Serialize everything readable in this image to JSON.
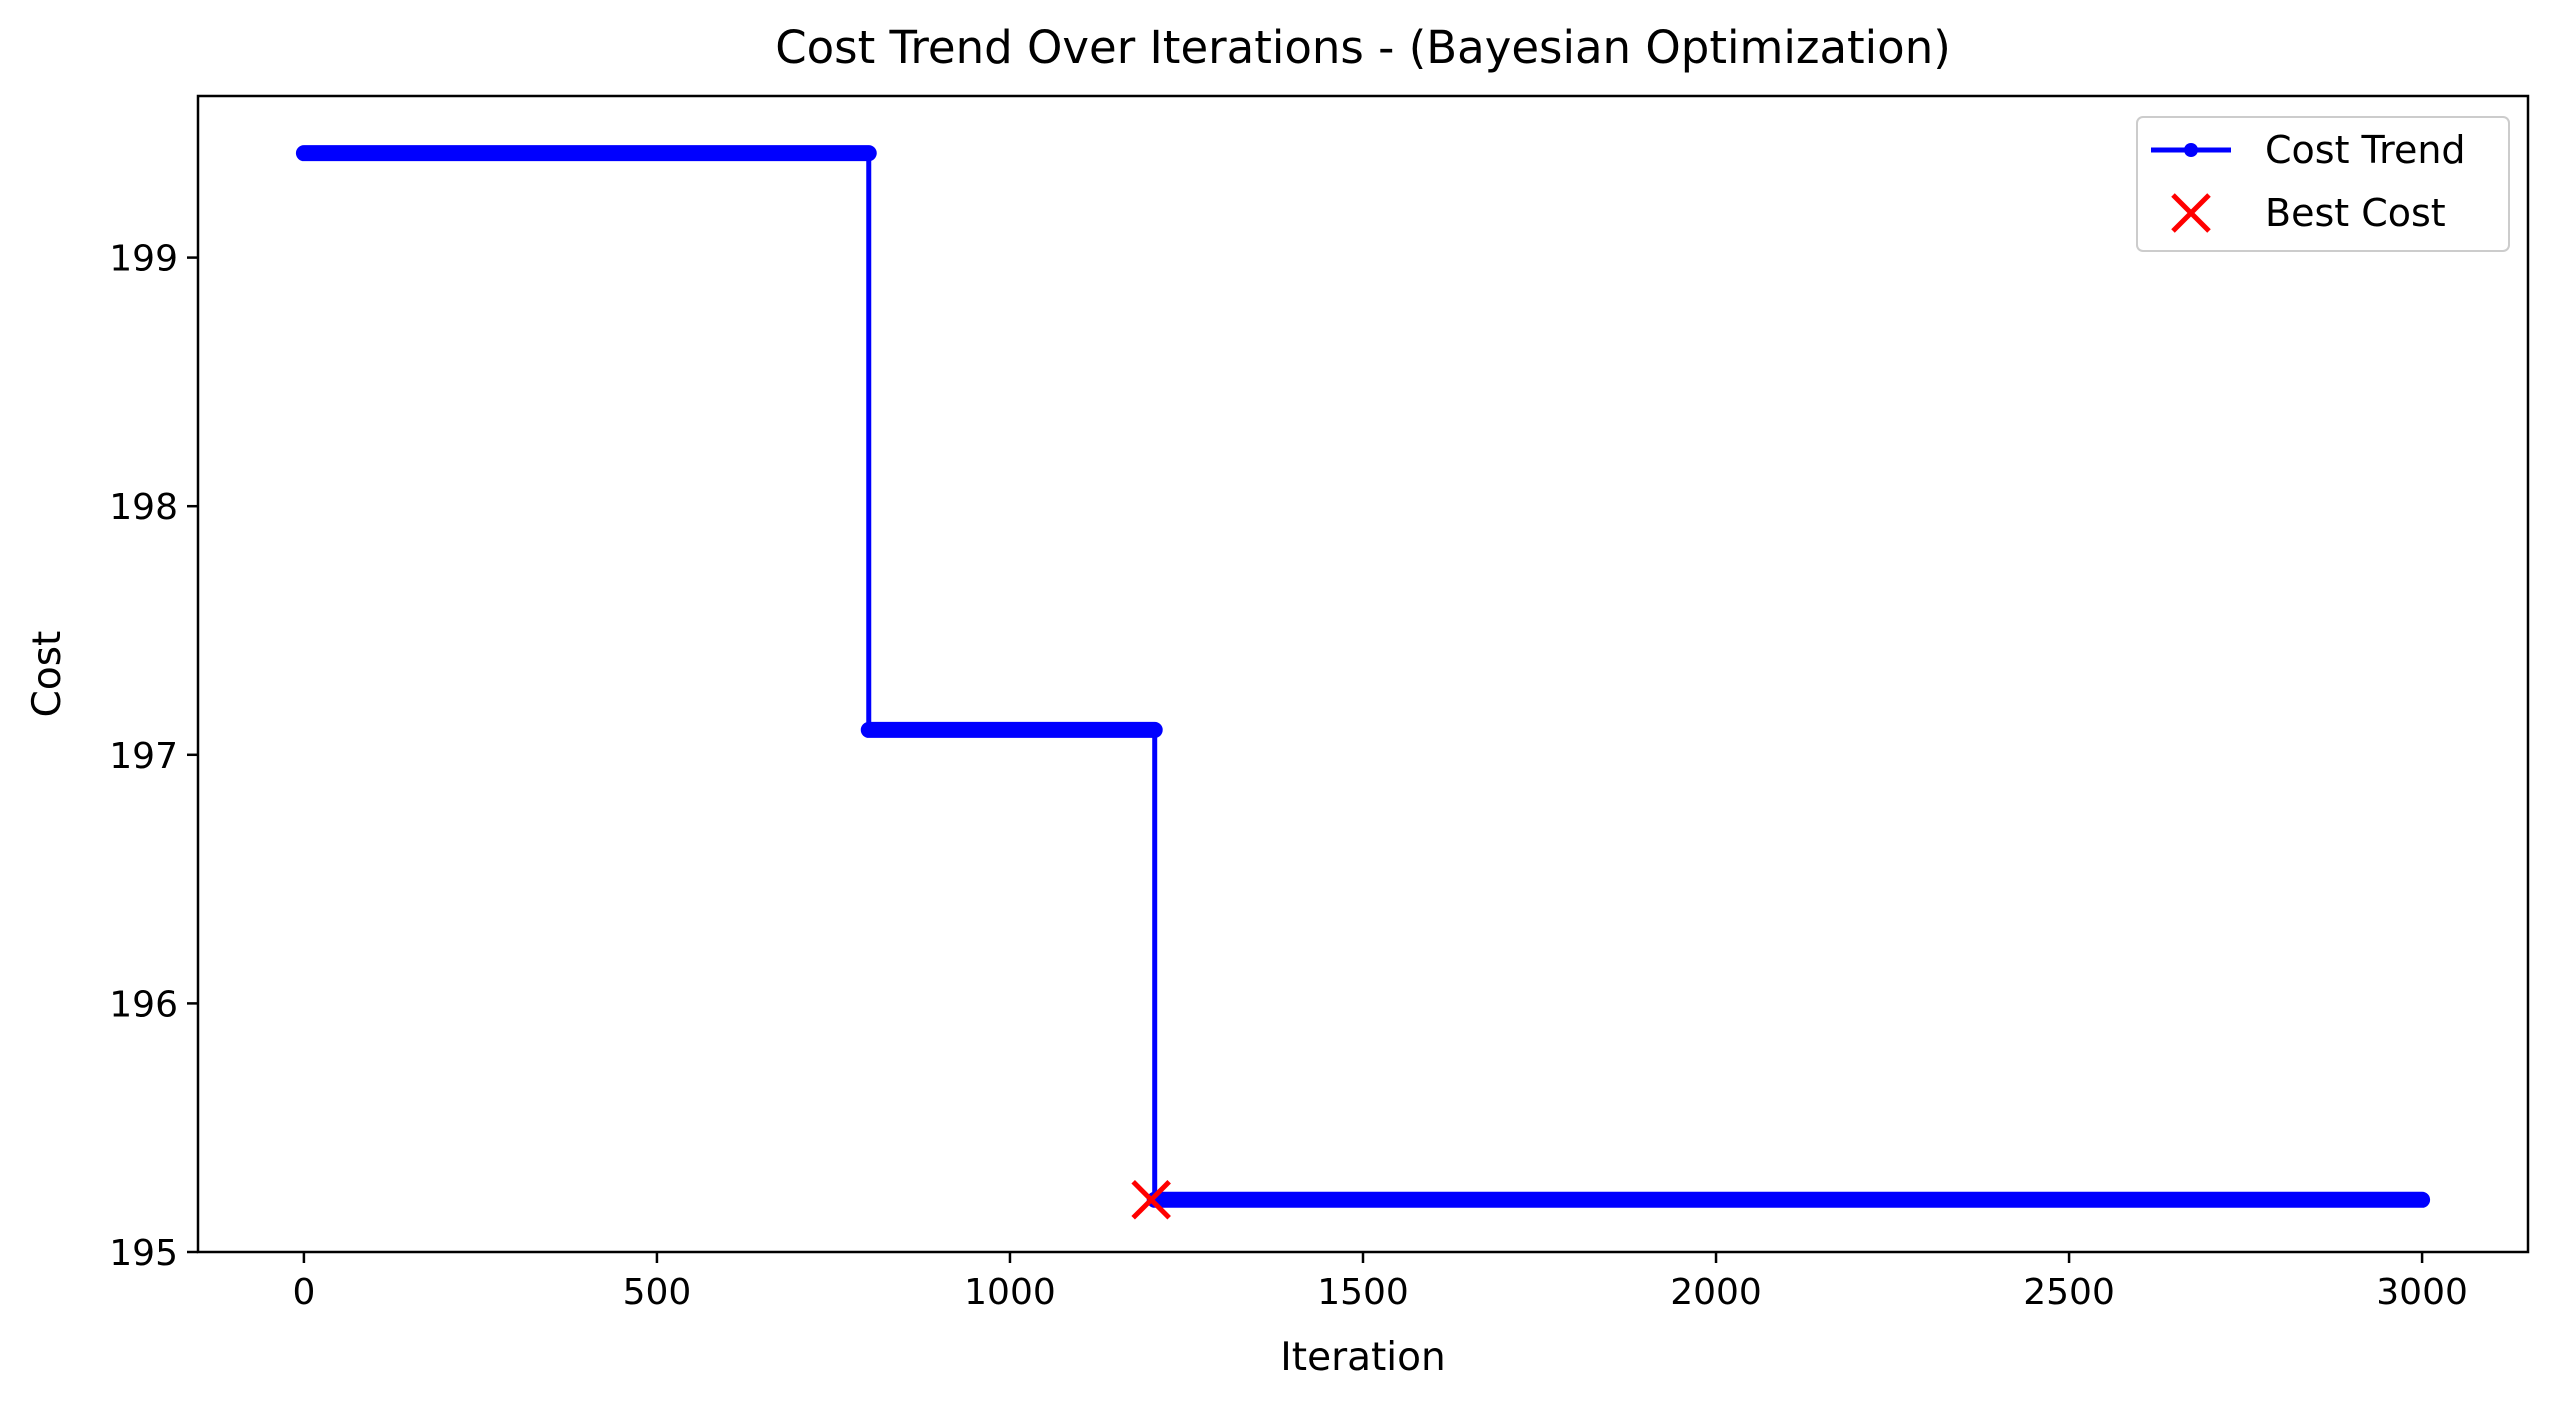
{
  "chart_data": {
    "type": "line",
    "title": "Cost Trend Over Iterations - (Bayesian Optimization)",
    "xlabel": "Iteration",
    "ylabel": "Cost",
    "xlim": [
      -150,
      3150
    ],
    "ylim": [
      195.0,
      199.65
    ],
    "xticks": [
      0,
      500,
      1000,
      1500,
      2000,
      2500,
      3000
    ],
    "yticks": [
      195,
      196,
      197,
      198,
      199
    ],
    "grid": false,
    "legend_position": "top-right",
    "legend": [
      {
        "label": "Cost Trend",
        "marker": "line-dot"
      },
      {
        "label": "Best Cost",
        "marker": "x"
      }
    ],
    "series": [
      {
        "name": "Cost Trend",
        "color": "#0000ff",
        "style": "step",
        "segments": [
          {
            "x_start": 0,
            "x_end": 800,
            "y": 199.42
          },
          {
            "x_start": 800,
            "x_end": 1205,
            "y": 197.1
          },
          {
            "x_start": 1205,
            "x_end": 3000,
            "y": 195.21
          }
        ]
      }
    ],
    "best_point": {
      "name": "Best Cost",
      "x": 1200,
      "y": 195.21,
      "color": "#ff0000"
    }
  }
}
